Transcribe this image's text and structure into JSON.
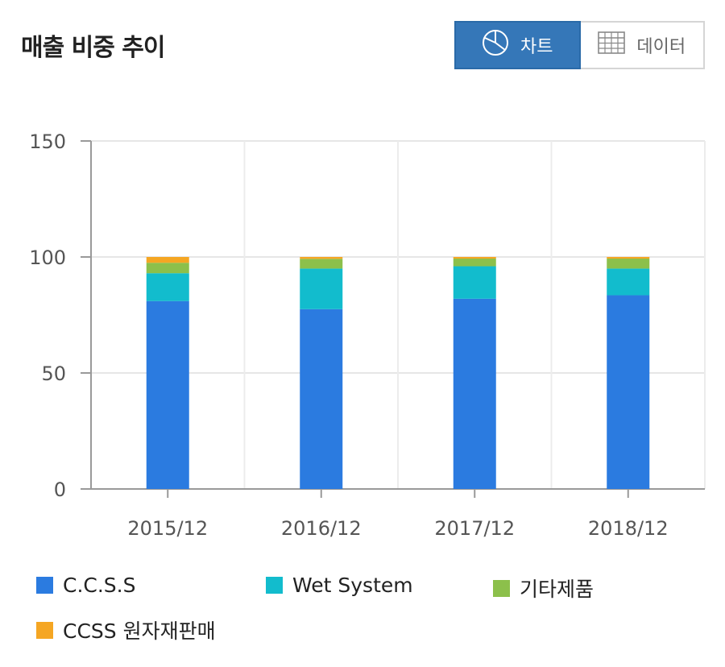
{
  "header": {
    "title": "매출 비중 추이"
  },
  "view_toggle": {
    "chart_label": "차트",
    "data_label": "데이터"
  },
  "colors": {
    "accent": "#3577b8",
    "ccss": "#2b7be0",
    "wet": "#12bccd",
    "etc": "#8cc04b",
    "raw": "#f5a623"
  },
  "chart_data": {
    "type": "bar",
    "stacked": true,
    "categories": [
      "2015/12",
      "2016/12",
      "2017/12",
      "2018/12"
    ],
    "ylim": [
      0,
      150
    ],
    "yticks": [
      0,
      50,
      100,
      150
    ],
    "grid": true,
    "legend_position": "bottom",
    "series": [
      {
        "name": "C.C.S.S",
        "color": "#2b7be0",
        "values": [
          81,
          77.5,
          82,
          83.5
        ]
      },
      {
        "name": "Wet System",
        "color": "#12bccd",
        "values": [
          12,
          17.5,
          14,
          11.5
        ]
      },
      {
        "name": "기타제품",
        "color": "#8cc04b",
        "values": [
          4.5,
          4.2,
          3.3,
          4.3
        ]
      },
      {
        "name": "CCSS 원자재판매",
        "color": "#f5a623",
        "values": [
          2.5,
          0.8,
          0.7,
          0.7
        ]
      }
    ]
  }
}
